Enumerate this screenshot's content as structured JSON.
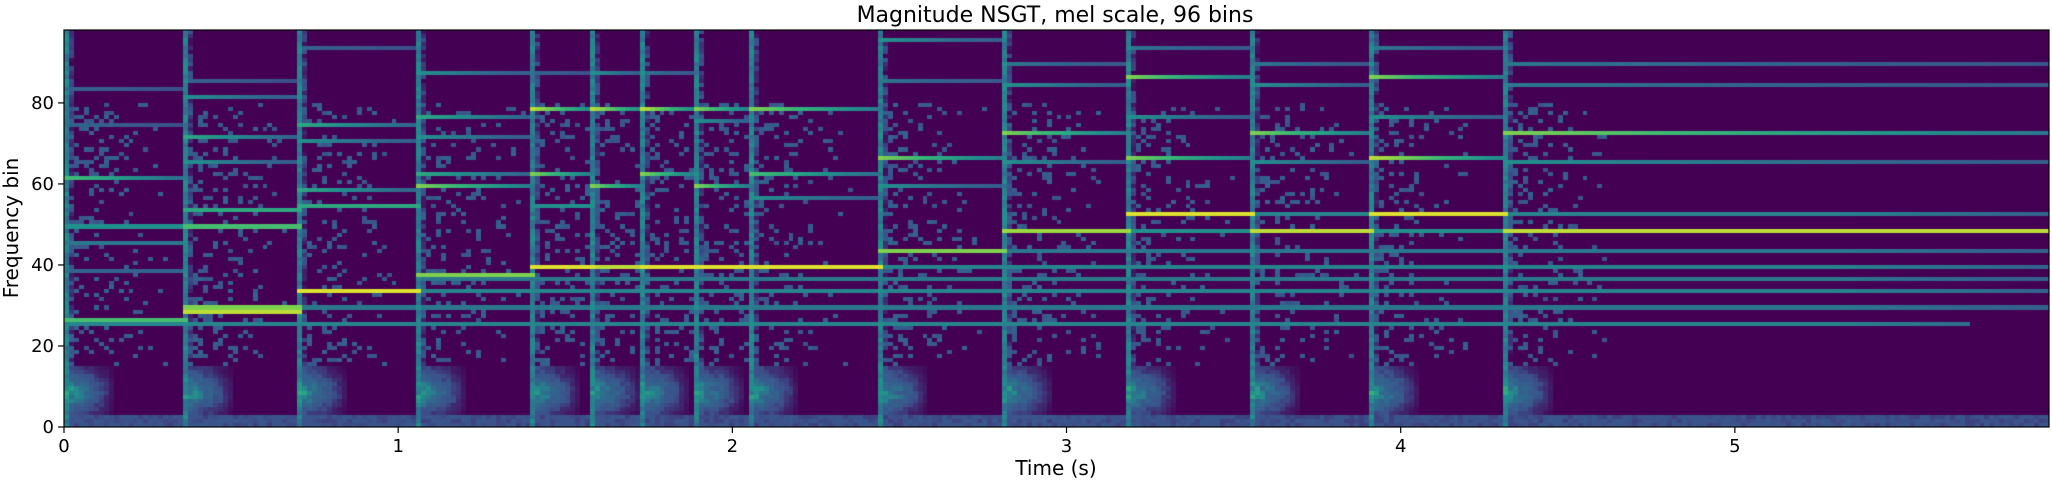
{
  "chart_data": {
    "type": "heatmap",
    "title": "Magnitude NSGT, mel scale, 96 bins",
    "xlabel": "Time (s)",
    "ylabel": "Frequency bin",
    "xlim": [
      0,
      5.94
    ],
    "ylim": [
      0,
      98
    ],
    "x_ticks": [
      0,
      1,
      2,
      3,
      4,
      5
    ],
    "y_ticks": [
      0,
      20,
      40,
      60,
      80
    ],
    "colormap": "viridis",
    "colors": {
      "low": "#440154",
      "mid_low": "#31688e",
      "mid": "#21918c",
      "mid_high": "#35b779",
      "high": "#fde725"
    },
    "grid": false,
    "legend": "none",
    "note_events": [
      {
        "onset": 0.0,
        "end": 0.36,
        "partials": [
          [
            26,
            0.7
          ],
          [
            61,
            0.7
          ],
          [
            49,
            0.5
          ],
          [
            45,
            0.4
          ],
          [
            74,
            0.3
          ],
          [
            83,
            0.3
          ],
          [
            38,
            0.3
          ]
        ]
      },
      {
        "onset": 0.36,
        "end": 0.71,
        "partials": [
          [
            28,
            0.9
          ],
          [
            29,
            0.8
          ],
          [
            49,
            0.7
          ],
          [
            53,
            0.6
          ],
          [
            65,
            0.5
          ],
          [
            71,
            0.6
          ],
          [
            81,
            0.5
          ],
          [
            85,
            0.3
          ]
        ]
      },
      {
        "onset": 0.71,
        "end": 1.06,
        "partials": [
          [
            33,
            0.95
          ],
          [
            54,
            0.6
          ],
          [
            58,
            0.6
          ],
          [
            70,
            0.5
          ],
          [
            74,
            0.6
          ],
          [
            93,
            0.3
          ]
        ]
      },
      {
        "onset": 1.06,
        "end": 1.41,
        "partials": [
          [
            37,
            0.8
          ],
          [
            59,
            0.8
          ],
          [
            62,
            0.6
          ],
          [
            71,
            0.5
          ],
          [
            76,
            0.6
          ],
          [
            87,
            0.5
          ]
        ]
      },
      {
        "onset": 1.41,
        "end": 1.58,
        "partials": [
          [
            39,
            0.95
          ],
          [
            62,
            0.8
          ],
          [
            78,
            0.9
          ],
          [
            54,
            0.5
          ],
          [
            87,
            0.3
          ]
        ]
      },
      {
        "onset": 1.58,
        "end": 1.73,
        "partials": [
          [
            39,
            0.9
          ],
          [
            59,
            0.8
          ],
          [
            78,
            0.9
          ],
          [
            87,
            0.5
          ]
        ]
      },
      {
        "onset": 1.73,
        "end": 1.89,
        "partials": [
          [
            39,
            0.95
          ],
          [
            62,
            0.8
          ],
          [
            78,
            0.9
          ],
          [
            87,
            0.4
          ]
        ]
      },
      {
        "onset": 1.89,
        "end": 2.06,
        "partials": [
          [
            39,
            0.95
          ],
          [
            59,
            0.8
          ],
          [
            78,
            0.8
          ],
          [
            75,
            0.5
          ]
        ]
      },
      {
        "onset": 2.06,
        "end": 2.45,
        "partials": [
          [
            39,
            0.95
          ],
          [
            62,
            0.7
          ],
          [
            78,
            0.8
          ],
          [
            56,
            0.5
          ]
        ]
      },
      {
        "onset": 2.45,
        "end": 2.82,
        "partials": [
          [
            43,
            0.8
          ],
          [
            66,
            0.8
          ],
          [
            59,
            0.5
          ],
          [
            95,
            0.5
          ],
          [
            85,
            0.4
          ]
        ]
      },
      {
        "onset": 2.82,
        "end": 3.19,
        "partials": [
          [
            48,
            0.85
          ],
          [
            72,
            0.8
          ],
          [
            65,
            0.5
          ],
          [
            84,
            0.5
          ],
          [
            89,
            0.4
          ]
        ]
      },
      {
        "onset": 3.19,
        "end": 3.55,
        "partials": [
          [
            52,
            0.95
          ],
          [
            66,
            0.8
          ],
          [
            86,
            0.8
          ],
          [
            76,
            0.5
          ],
          [
            93,
            0.4
          ]
        ]
      },
      {
        "onset": 3.55,
        "end": 3.92,
        "partials": [
          [
            48,
            0.9
          ],
          [
            72,
            0.8
          ],
          [
            65,
            0.5
          ],
          [
            84,
            0.5
          ],
          [
            89,
            0.4
          ]
        ]
      },
      {
        "onset": 3.92,
        "end": 4.31,
        "partials": [
          [
            52,
            0.95
          ],
          [
            66,
            0.9
          ],
          [
            86,
            0.8
          ],
          [
            76,
            0.5
          ],
          [
            93,
            0.4
          ]
        ]
      },
      {
        "onset": 4.31,
        "end": 5.94,
        "partials": [
          [
            48,
            0.9
          ],
          [
            72,
            0.8
          ],
          [
            65,
            0.5
          ],
          [
            84,
            0.4
          ],
          [
            89,
            0.4
          ]
        ]
      }
    ],
    "sustained_bands": [
      {
        "bin": 25,
        "start": 0.0,
        "end": 5.7,
        "level": 0.45
      },
      {
        "bin": 29,
        "start": 0.36,
        "end": 5.94,
        "level": 0.4
      },
      {
        "bin": 33,
        "start": 0.71,
        "end": 5.94,
        "level": 0.45
      },
      {
        "bin": 36,
        "start": 1.06,
        "end": 5.94,
        "level": 0.4
      },
      {
        "bin": 39,
        "start": 1.41,
        "end": 5.94,
        "level": 0.45
      },
      {
        "bin": 43,
        "start": 2.45,
        "end": 5.94,
        "level": 0.4
      },
      {
        "bin": 48,
        "start": 2.82,
        "end": 5.94,
        "level": 0.5
      },
      {
        "bin": 52,
        "start": 3.19,
        "end": 5.94,
        "level": 0.45
      }
    ],
    "low_band": {
      "bin_range": [
        0,
        14
      ],
      "level": 0.35
    }
  }
}
